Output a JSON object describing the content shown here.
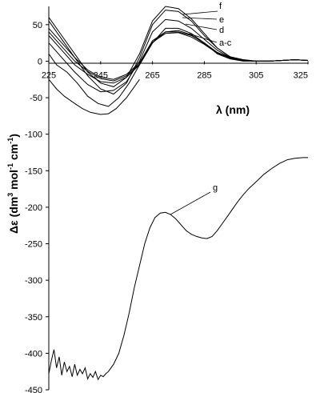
{
  "chart_data": {
    "type": "line",
    "xlabel": "λ (nm)",
    "ylabel": {
      "prefix": "Δε (dm",
      "sup1": "3",
      "mid1": " mol",
      "sup2": "-1",
      "mid2": " cm",
      "sup3": "-1",
      "suffix": ")"
    },
    "xlim": [
      225,
      325
    ],
    "ylim": [
      -450,
      75
    ],
    "x_ticks": [
      "225",
      "245",
      "265",
      "285",
      "305",
      "325"
    ],
    "y_ticks": [
      "50",
      "0",
      "-50",
      "-100",
      "-150",
      "-200",
      "-250",
      "-300",
      "-350",
      "-400",
      "-450"
    ],
    "grid": false,
    "series": [
      {
        "name": "a-c",
        "x": [
          225,
          230,
          235,
          240,
          245,
          250,
          255,
          260,
          265,
          270,
          275,
          280,
          285,
          290,
          295,
          300,
          305,
          310,
          315,
          320,
          325
        ],
        "values": [
          45,
          25,
          5,
          -12,
          -22,
          -25,
          -18,
          -2,
          28,
          40,
          40,
          35,
          25,
          12,
          5,
          1,
          0,
          0,
          1,
          2,
          1
        ]
      },
      {
        "name": "a-c",
        "x": [
          225,
          230,
          235,
          240,
          245,
          250,
          255,
          260,
          265,
          270,
          275,
          280,
          285,
          290,
          295,
          300,
          305,
          310,
          315,
          320,
          325
        ],
        "values": [
          40,
          20,
          0,
          -14,
          -24,
          -27,
          -20,
          -4,
          26,
          38,
          39,
          33,
          23,
          11,
          4,
          1,
          0,
          0,
          1,
          2,
          1
        ]
      },
      {
        "name": "a-c",
        "x": [
          225,
          230,
          235,
          240,
          245,
          250,
          255,
          260,
          265,
          270,
          275,
          280,
          285,
          290,
          295,
          300,
          305,
          310,
          315,
          320,
          325
        ],
        "values": [
          35,
          15,
          -5,
          -18,
          -28,
          -30,
          -22,
          -5,
          25,
          40,
          42,
          36,
          24,
          12,
          4,
          1,
          0,
          0,
          1,
          2,
          1
        ]
      },
      {
        "name": "d",
        "x": [
          225,
          230,
          235,
          240,
          245,
          250,
          255,
          260,
          265,
          270,
          275,
          280,
          285,
          290,
          295,
          300,
          305,
          310,
          315,
          320,
          325
        ],
        "values": [
          25,
          5,
          -15,
          -32,
          -42,
          -40,
          -28,
          0,
          40,
          57,
          55,
          45,
          30,
          15,
          5,
          1,
          0,
          0,
          1,
          2,
          1
        ]
      },
      {
        "name": "e",
        "x": [
          225,
          230,
          235,
          240,
          245,
          250,
          255,
          260,
          265,
          270,
          275,
          280,
          285,
          290,
          295,
          300,
          305,
          310,
          315,
          320,
          325
        ],
        "values": [
          55,
          30,
          5,
          -20,
          -38,
          -45,
          -30,
          5,
          50,
          70,
          68,
          55,
          35,
          18,
          6,
          2,
          0,
          0,
          1,
          2,
          1
        ]
      },
      {
        "name": "f",
        "x": [
          225,
          230,
          235,
          240,
          245,
          250,
          255,
          260,
          265,
          270,
          275,
          280,
          285,
          290,
          295,
          300,
          305,
          310,
          315,
          320,
          325
        ],
        "values": [
          60,
          35,
          10,
          -15,
          -30,
          -35,
          -22,
          10,
          55,
          75,
          72,
          58,
          38,
          18,
          6,
          2,
          0,
          0,
          1,
          2,
          1
        ]
      },
      {
        "name": "",
        "x": [
          225,
          228,
          232,
          236,
          240,
          244,
          248,
          252,
          256,
          260,
          265,
          270,
          275,
          280,
          285,
          290,
          295,
          300,
          305,
          310,
          315,
          320,
          325
        ],
        "values": [
          10,
          -5,
          -15,
          -30,
          -48,
          -58,
          -62,
          -50,
          -30,
          -5,
          25,
          45,
          45,
          38,
          25,
          10,
          3,
          0,
          0,
          0,
          1,
          2,
          1
        ]
      },
      {
        "name": "",
        "x": [
          225,
          228,
          231,
          235,
          238,
          241,
          245,
          248,
          251,
          255,
          258,
          260
        ],
        "values": [
          -25,
          -38,
          -48,
          -58,
          -65,
          -70,
          -73,
          -72,
          -65,
          -50,
          -35,
          -25
        ]
      },
      {
        "name": "g",
        "x": [
          225,
          226,
          227,
          228,
          229,
          230,
          231,
          232,
          233,
          234,
          235,
          236,
          237,
          238,
          239,
          240,
          241,
          242,
          243,
          244,
          245,
          246,
          247,
          248,
          249,
          250,
          252,
          254,
          256,
          258,
          260,
          262,
          264,
          266,
          268,
          270,
          272,
          274,
          276,
          278,
          280,
          282,
          284,
          286,
          288,
          290,
          292,
          294,
          296,
          298,
          300,
          302,
          305,
          308,
          311,
          314,
          317,
          320,
          323,
          325
        ],
        "values": [
          -428,
          -410,
          -395,
          -420,
          -405,
          -430,
          -412,
          -425,
          -418,
          -432,
          -415,
          -430,
          -422,
          -428,
          -420,
          -435,
          -428,
          -433,
          -425,
          -436,
          -430,
          -432,
          -428,
          -425,
          -420,
          -415,
          -400,
          -375,
          -345,
          -310,
          -280,
          -250,
          -228,
          -214,
          -208,
          -207,
          -210,
          -216,
          -224,
          -232,
          -237,
          -240,
          -242,
          -243,
          -240,
          -232,
          -222,
          -212,
          -202,
          -192,
          -183,
          -175,
          -165,
          -155,
          -147,
          -140,
          -135,
          -133,
          -132,
          -132
        ]
      }
    ],
    "labels": [
      "f",
      "e",
      "d",
      "a-c",
      "g"
    ]
  }
}
